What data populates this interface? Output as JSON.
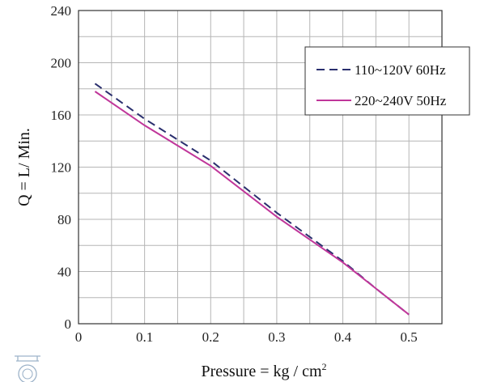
{
  "chart_data": {
    "type": "line",
    "xlabel": "Pressure = kg / cm",
    "xlabel_superscript": "2",
    "ylabel": "Q = L/ Min.",
    "xlim": [
      0,
      0.55
    ],
    "ylim": [
      0,
      240
    ],
    "x_ticks": [
      "0",
      "0.1",
      "0.2",
      "0.3",
      "0.4",
      "0.5"
    ],
    "y_ticks": [
      "0",
      "40",
      "80",
      "120",
      "160",
      "200",
      "240"
    ],
    "grid": true,
    "legend_position": "upper-right",
    "series": [
      {
        "name": "110~120V 60Hz",
        "style": "dashed",
        "color": "#2a2f6e",
        "points": [
          [
            0.025,
            184
          ],
          [
            0.1,
            157
          ],
          [
            0.2,
            125
          ],
          [
            0.3,
            85
          ],
          [
            0.4,
            48
          ],
          [
            0.45,
            27
          ],
          [
            0.5,
            7
          ]
        ]
      },
      {
        "name": "220~240V 50Hz",
        "style": "solid",
        "color": "#c0369a",
        "points": [
          [
            0.025,
            178
          ],
          [
            0.1,
            152
          ],
          [
            0.2,
            121
          ],
          [
            0.3,
            82
          ],
          [
            0.4,
            47
          ],
          [
            0.45,
            27
          ],
          [
            0.5,
            7
          ]
        ]
      }
    ]
  }
}
